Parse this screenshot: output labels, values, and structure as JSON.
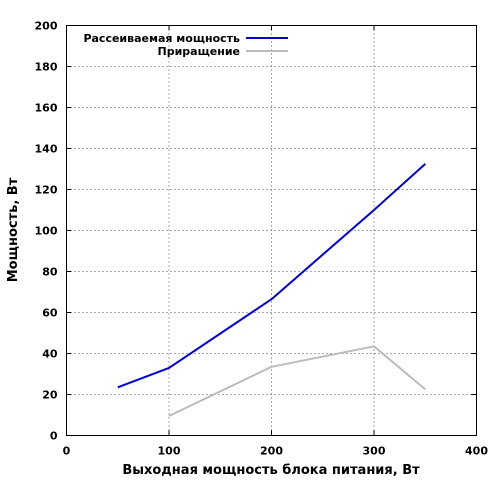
{
  "chart_data": {
    "type": "line",
    "xlabel": "Выходная мощность блока питания, Вт",
    "ylabel": "Мощность, Вт",
    "xlim": [
      0,
      400
    ],
    "ylim": [
      0,
      200
    ],
    "x_ticks": [
      0,
      100,
      200,
      300,
      400
    ],
    "y_ticks": [
      0,
      20,
      40,
      60,
      80,
      100,
      120,
      140,
      160,
      180,
      200
    ],
    "grid": true,
    "legend_position": "top-left",
    "series": [
      {
        "name": "Рассеиваемая мощность",
        "color": "#0000dd",
        "points": [
          [
            50,
            23.5
          ],
          [
            100,
            33
          ],
          [
            200,
            66.5
          ],
          [
            300,
            110
          ],
          [
            350,
            132.5
          ]
        ]
      },
      {
        "name": "Приращение",
        "color": "#bbbbbb",
        "points": [
          [
            100,
            9.5
          ],
          [
            200,
            33.5
          ],
          [
            300,
            43.5
          ],
          [
            350,
            22.5
          ]
        ]
      }
    ]
  }
}
